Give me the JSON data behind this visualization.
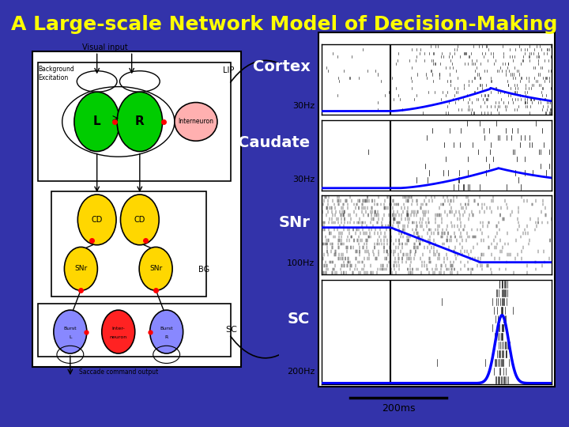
{
  "title": "A Large-scale Network Model of Decision-Making",
  "title_color": "#FFFF00",
  "bg_color": "#3333AA",
  "labels": [
    "Cortex",
    "Caudate",
    "SNr",
    "SC"
  ],
  "label_color": "white",
  "freq_labels": [
    "30Hz",
    "30Hz",
    "100Hz",
    "200Hz"
  ],
  "time_label": "200ms",
  "title_fontsize": 18,
  "label_fontsize": 14,
  "freq_fontsize": 8
}
